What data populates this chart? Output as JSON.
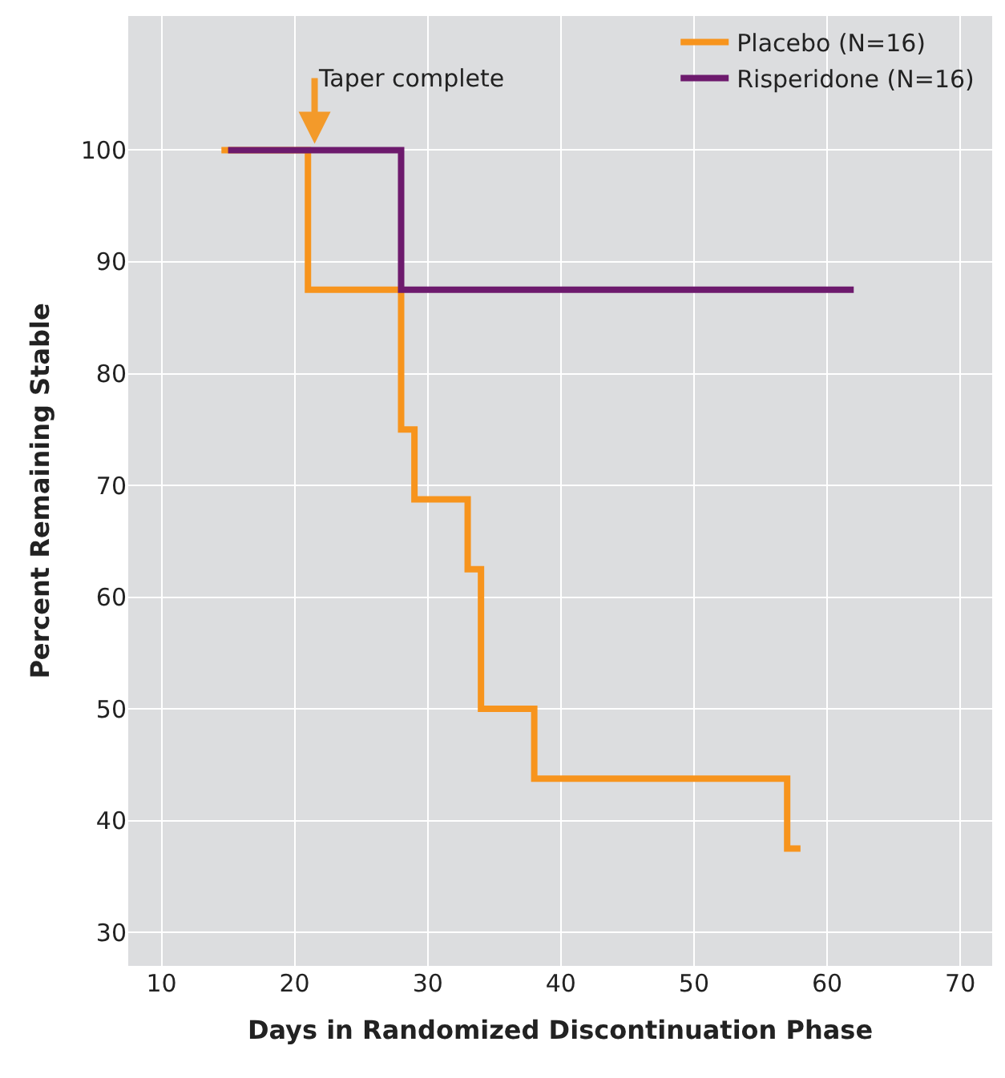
{
  "chart_data": {
    "type": "step",
    "xlabel": "Days in Randomized Discontinuation Phase",
    "ylabel": "Percent Remaining Stable",
    "series": [
      {
        "name": "Placebo (N=16)",
        "color": "#f7941d",
        "x": [
          14.5,
          21,
          28,
          29,
          33,
          34,
          38,
          57,
          58
        ],
        "values": [
          100,
          87.5,
          75,
          68.75,
          62.5,
          50,
          43.75,
          37.5,
          37.5
        ]
      },
      {
        "name": "Risperidone (N=16)",
        "color": "#6d1a6d",
        "x": [
          15,
          28,
          62
        ],
        "values": [
          100,
          87.5,
          87.5
        ]
      }
    ],
    "annotations": [
      {
        "text": "Taper complete",
        "x": 21.5,
        "y": 100
      }
    ],
    "xlim": [
      7.5,
      72.4
    ],
    "xticks": [
      10,
      20,
      30,
      40,
      50,
      60,
      70
    ],
    "ylim": [
      27,
      112
    ],
    "yticks": [
      30,
      40,
      50,
      60,
      70,
      80,
      90,
      100
    ],
    "grid": true,
    "legend": "top right",
    "marker": "none",
    "line_style": "solid"
  }
}
